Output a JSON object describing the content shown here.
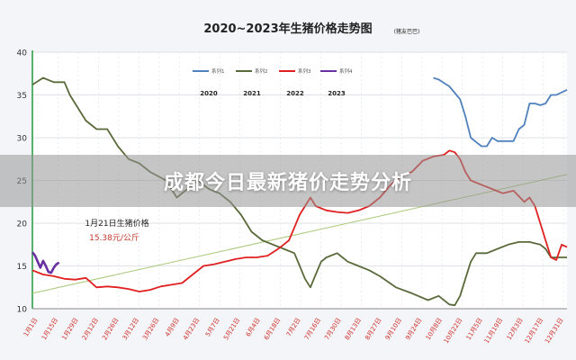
{
  "overlay": {
    "headline": "成都今日最新猪价走势分析"
  },
  "chart_data": {
    "type": "line",
    "title": "2020~2023年生猪价格走势图",
    "source_note": "(猪友巴巴)",
    "ylim": [
      10,
      40
    ],
    "yticks": [
      10,
      15,
      20,
      25,
      30,
      35,
      40
    ],
    "xticks": [
      "1月1日",
      "1月15日",
      "1月29日",
      "2月12日",
      "2月26日",
      "3月12日",
      "3月26日",
      "4月9日",
      "4月23日",
      "5月7日",
      "5月21日",
      "6月4日",
      "6月18日",
      "7月2日",
      "7月16日",
      "7月30日",
      "8月13日",
      "8月27日",
      "9月10日",
      "9月24日",
      "10月8日",
      "10月22日",
      "11月5日",
      "11月19日",
      "12月3日",
      "12月17日",
      "12月31日"
    ],
    "legend": [
      {
        "name": "系列1",
        "year": "2020",
        "color": "#4f81bd"
      },
      {
        "name": "系列2",
        "year": "2021",
        "color": "#5a6a3a"
      },
      {
        "name": "系列3",
        "year": "2022",
        "color": "#e02020"
      },
      {
        "name": "系列4",
        "year": "2023",
        "color": "#6a2fa0"
      }
    ],
    "annotation": {
      "line1": "1月21日生猪价格",
      "line2": "15.38元/公斤"
    },
    "trendline": {
      "from": 11.8,
      "to": 25.7,
      "color": "#a8c878"
    },
    "series": [
      {
        "name": "系列1",
        "color": "#4f81bd",
        "points": [
          [
            0.75,
            37
          ],
          [
            0.76,
            36.8
          ],
          [
            0.78,
            36
          ],
          [
            0.8,
            34.5
          ],
          [
            0.81,
            32.5
          ],
          [
            0.82,
            30
          ],
          [
            0.83,
            29.5
          ],
          [
            0.84,
            29
          ],
          [
            0.85,
            29
          ],
          [
            0.86,
            30
          ],
          [
            0.87,
            29.6
          ],
          [
            0.88,
            29.6
          ],
          [
            0.9,
            29.6
          ],
          [
            0.91,
            31
          ],
          [
            0.92,
            31.5
          ],
          [
            0.93,
            34
          ],
          [
            0.94,
            34
          ],
          [
            0.95,
            33.8
          ],
          [
            0.96,
            34
          ],
          [
            0.97,
            35
          ],
          [
            0.98,
            35
          ],
          [
            1.0,
            35.6
          ]
        ]
      },
      {
        "name": "系列2",
        "color": "#5a6a3a",
        "points": [
          [
            0,
            36.2
          ],
          [
            0.02,
            37
          ],
          [
            0.04,
            36.5
          ],
          [
            0.06,
            36.5
          ],
          [
            0.07,
            35
          ],
          [
            0.08,
            34
          ],
          [
            0.1,
            32
          ],
          [
            0.12,
            31
          ],
          [
            0.14,
            31
          ],
          [
            0.16,
            29
          ],
          [
            0.18,
            27.5
          ],
          [
            0.2,
            27
          ],
          [
            0.22,
            26
          ],
          [
            0.25,
            25
          ],
          [
            0.27,
            23
          ],
          [
            0.29,
            24
          ],
          [
            0.31,
            25
          ],
          [
            0.33,
            24
          ],
          [
            0.35,
            23.5
          ],
          [
            0.37,
            22.5
          ],
          [
            0.39,
            21
          ],
          [
            0.41,
            19
          ],
          [
            0.43,
            18
          ],
          [
            0.45,
            17.5
          ],
          [
            0.47,
            17
          ],
          [
            0.49,
            16.5
          ],
          [
            0.5,
            15
          ],
          [
            0.51,
            13.5
          ],
          [
            0.52,
            12.5
          ],
          [
            0.53,
            14
          ],
          [
            0.54,
            15.5
          ],
          [
            0.55,
            16
          ],
          [
            0.57,
            16.5
          ],
          [
            0.59,
            15.5
          ],
          [
            0.61,
            15
          ],
          [
            0.63,
            14.5
          ],
          [
            0.65,
            13.8
          ],
          [
            0.68,
            12.5
          ],
          [
            0.71,
            11.8
          ],
          [
            0.74,
            11
          ],
          [
            0.76,
            11.5
          ],
          [
            0.78,
            10.5
          ],
          [
            0.79,
            10.4
          ],
          [
            0.8,
            11.5
          ],
          [
            0.81,
            13.5
          ],
          [
            0.82,
            15.5
          ],
          [
            0.83,
            16.5
          ],
          [
            0.85,
            16.5
          ],
          [
            0.87,
            17
          ],
          [
            0.89,
            17.5
          ],
          [
            0.91,
            17.8
          ],
          [
            0.93,
            17.8
          ],
          [
            0.95,
            17.5
          ],
          [
            0.96,
            17
          ],
          [
            0.97,
            16
          ],
          [
            0.98,
            16
          ],
          [
            1.0,
            16
          ]
        ]
      },
      {
        "name": "系列3",
        "color": "#e02020",
        "points": [
          [
            0,
            14.5
          ],
          [
            0.02,
            14
          ],
          [
            0.04,
            13.8
          ],
          [
            0.06,
            13.5
          ],
          [
            0.08,
            13.4
          ],
          [
            0.1,
            13.6
          ],
          [
            0.12,
            12.5
          ],
          [
            0.14,
            12.6
          ],
          [
            0.16,
            12.5
          ],
          [
            0.18,
            12.3
          ],
          [
            0.2,
            12
          ],
          [
            0.22,
            12.2
          ],
          [
            0.24,
            12.6
          ],
          [
            0.26,
            12.8
          ],
          [
            0.28,
            13
          ],
          [
            0.3,
            14
          ],
          [
            0.32,
            15
          ],
          [
            0.34,
            15.2
          ],
          [
            0.36,
            15.5
          ],
          [
            0.38,
            15.8
          ],
          [
            0.4,
            16
          ],
          [
            0.42,
            16
          ],
          [
            0.44,
            16.2
          ],
          [
            0.46,
            17
          ],
          [
            0.47,
            17.5
          ],
          [
            0.48,
            18
          ],
          [
            0.49,
            19.5
          ],
          [
            0.5,
            21
          ],
          [
            0.52,
            23
          ],
          [
            0.53,
            22
          ],
          [
            0.55,
            21.5
          ],
          [
            0.57,
            21.3
          ],
          [
            0.59,
            21.2
          ],
          [
            0.61,
            21.5
          ],
          [
            0.63,
            22
          ],
          [
            0.65,
            23
          ],
          [
            0.67,
            24.5
          ],
          [
            0.69,
            25.5
          ],
          [
            0.71,
            26
          ],
          [
            0.73,
            27.3
          ],
          [
            0.75,
            27.8
          ],
          [
            0.77,
            28
          ],
          [
            0.78,
            28.5
          ],
          [
            0.79,
            28.3
          ],
          [
            0.8,
            27.5
          ],
          [
            0.81,
            26
          ],
          [
            0.82,
            25
          ],
          [
            0.84,
            24.5
          ],
          [
            0.86,
            24
          ],
          [
            0.88,
            23.5
          ],
          [
            0.9,
            23.8
          ],
          [
            0.92,
            22.5
          ],
          [
            0.93,
            23
          ],
          [
            0.94,
            22
          ],
          [
            0.95,
            20
          ],
          [
            0.96,
            18
          ],
          [
            0.97,
            16
          ],
          [
            0.98,
            15.7
          ],
          [
            0.99,
            17.5
          ],
          [
            1.0,
            17.2
          ]
        ]
      },
      {
        "name": "系列4",
        "color": "#6a2fa0",
        "points": [
          [
            0,
            16.6
          ],
          [
            0.005,
            16.2
          ],
          [
            0.01,
            15.5
          ],
          [
            0.015,
            14.8
          ],
          [
            0.02,
            15.6
          ],
          [
            0.025,
            15
          ],
          [
            0.03,
            14.3
          ],
          [
            0.035,
            14.2
          ],
          [
            0.04,
            14.8
          ],
          [
            0.045,
            15.2
          ],
          [
            0.05,
            15.4
          ]
        ]
      }
    ]
  }
}
